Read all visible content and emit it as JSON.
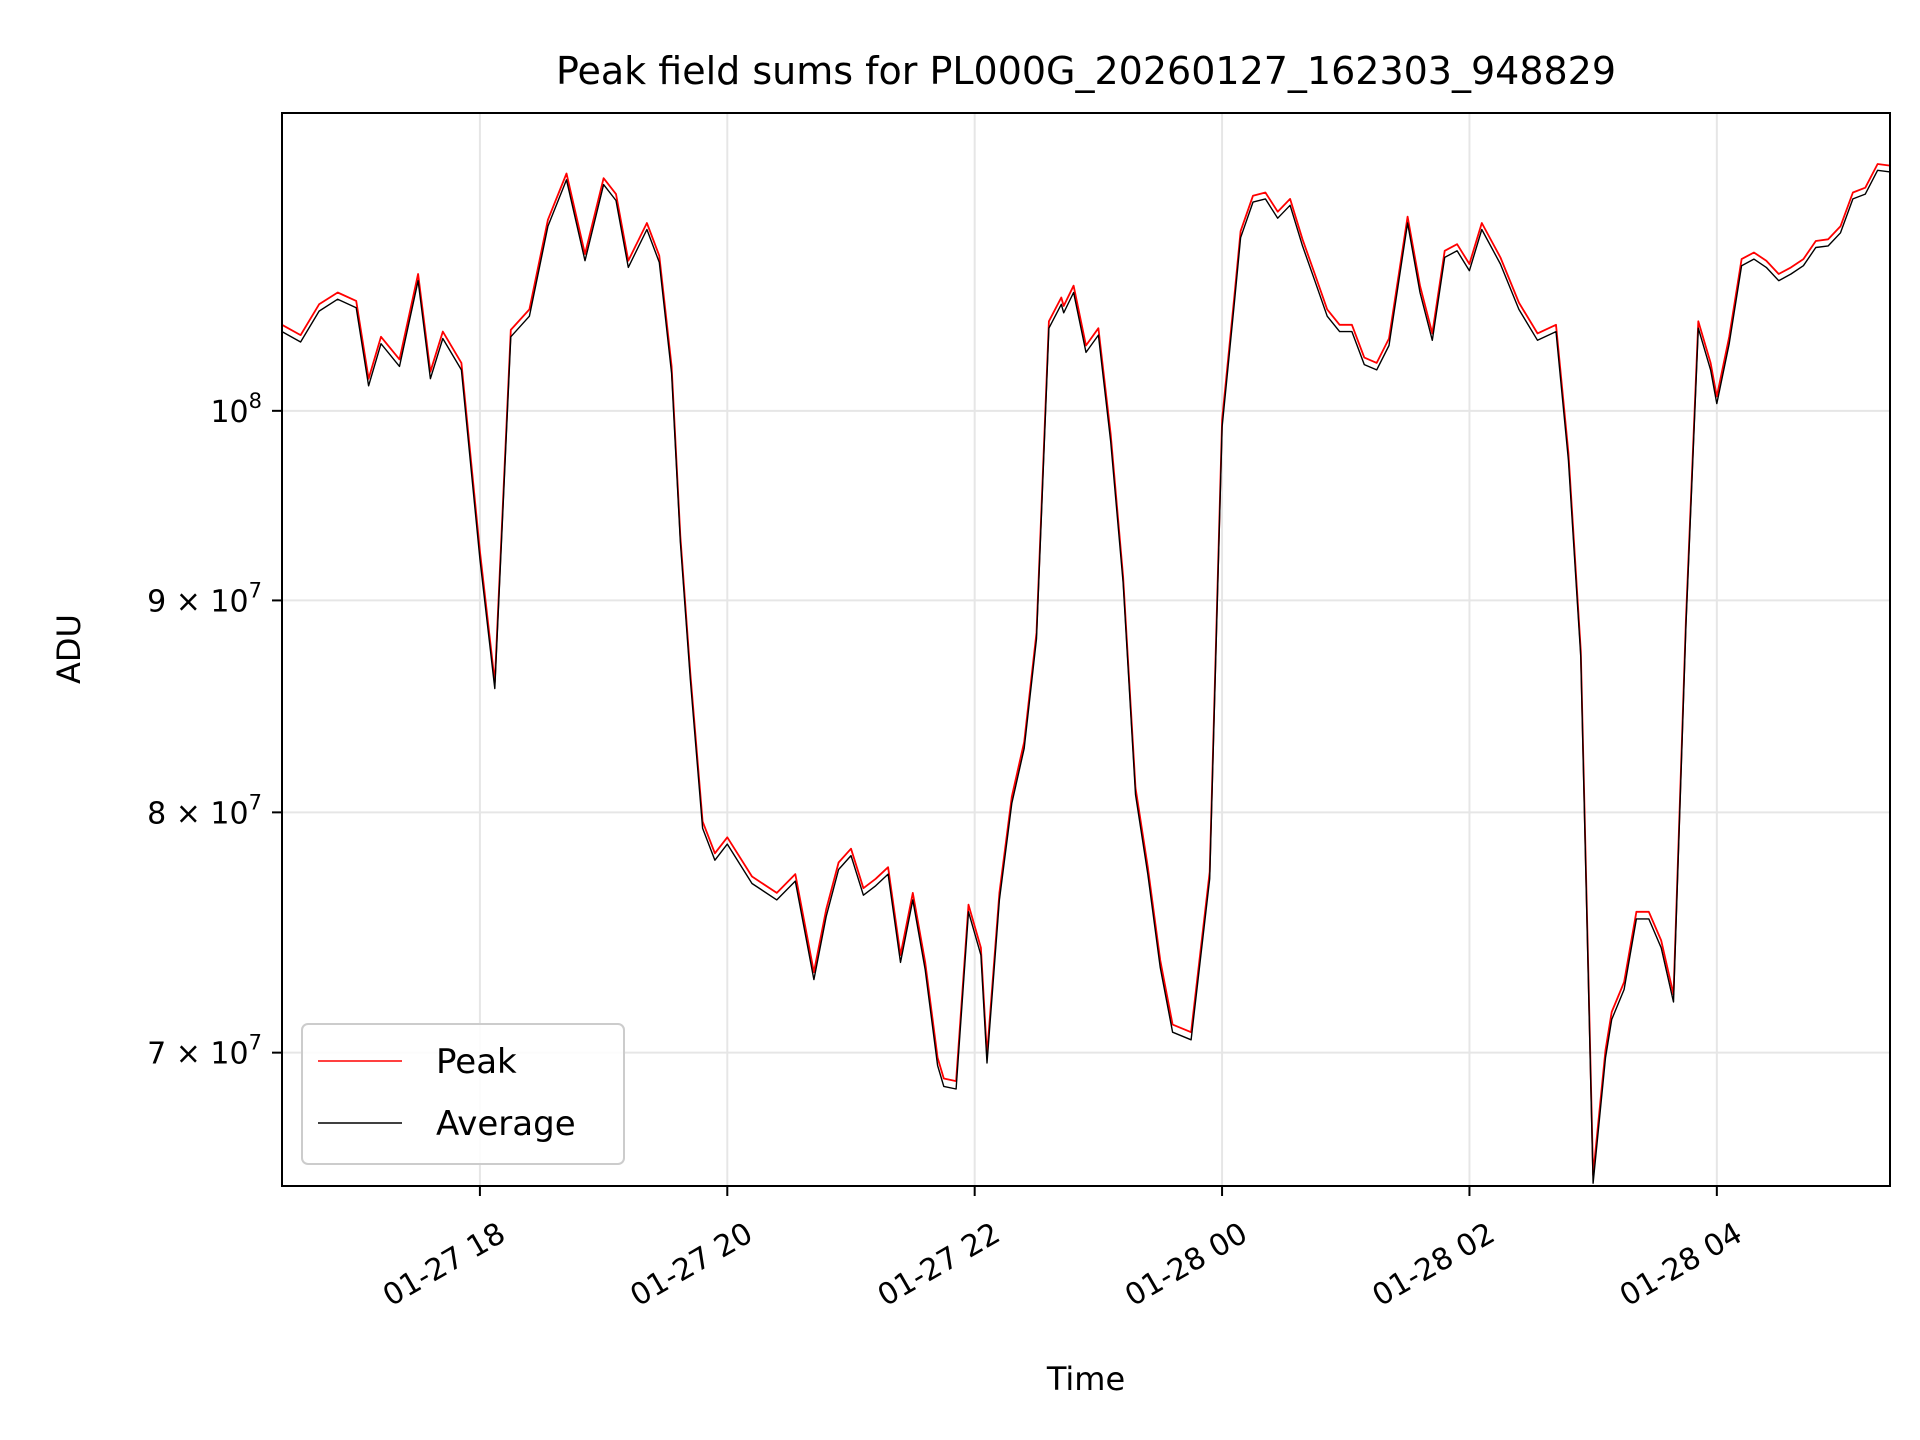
{
  "chart_data": {
    "type": "line",
    "title": "Peak field sums for PL000G_20260127_162303_948829",
    "xlabel": "Time",
    "ylabel": "ADU",
    "yscale": "log",
    "grid": true,
    "legend_position": "lower-left",
    "xlim_hours": [
      16.4,
      29.4
    ],
    "ylim": [
      65000000,
      118000000
    ],
    "x_ticks": [
      {
        "hours": 18,
        "label": "01-27 18"
      },
      {
        "hours": 20,
        "label": "01-27 20"
      },
      {
        "hours": 22,
        "label": "01-27 22"
      },
      {
        "hours": 24,
        "label": "01-28 00"
      },
      {
        "hours": 26,
        "label": "01-28 02"
      },
      {
        "hours": 28,
        "label": "01-28 04"
      }
    ],
    "y_ticks": [
      {
        "value": 70000000,
        "mantissa": "7",
        "exp": "7",
        "label": "7 × 10^7"
      },
      {
        "value": 80000000,
        "mantissa": "8",
        "exp": "7",
        "label": "8 × 10^7"
      },
      {
        "value": 90000000,
        "mantissa": "9",
        "exp": "7",
        "label": "9 × 10^7"
      },
      {
        "value": 100000000,
        "mantissa": "",
        "exp": "8",
        "label": "10^8"
      }
    ],
    "x_hours": [
      16.4,
      16.55,
      16.7,
      16.85,
      17.0,
      17.1,
      17.2,
      17.35,
      17.5,
      17.6,
      17.7,
      17.85,
      18.0,
      18.12,
      18.25,
      18.4,
      18.55,
      18.7,
      18.85,
      19.0,
      19.1,
      19.2,
      19.35,
      19.45,
      19.55,
      19.62,
      19.7,
      19.8,
      19.9,
      20.0,
      20.2,
      20.4,
      20.55,
      20.7,
      20.8,
      20.9,
      21.0,
      21.1,
      21.2,
      21.3,
      21.4,
      21.5,
      21.6,
      21.7,
      21.75,
      21.85,
      21.95,
      22.05,
      22.1,
      22.2,
      22.3,
      22.4,
      22.5,
      22.6,
      22.7,
      22.72,
      22.8,
      22.9,
      23.0,
      23.1,
      23.2,
      23.3,
      23.4,
      23.5,
      23.6,
      23.75,
      23.9,
      24.0,
      24.1,
      24.15,
      24.25,
      24.35,
      24.45,
      24.55,
      24.65,
      24.75,
      24.85,
      24.95,
      25.05,
      25.15,
      25.25,
      25.35,
      25.5,
      25.6,
      25.7,
      25.8,
      25.9,
      26.0,
      26.1,
      26.25,
      26.4,
      26.55,
      26.7,
      26.8,
      26.9,
      27.0,
      27.1,
      27.15,
      27.25,
      27.35,
      27.45,
      27.55,
      27.65,
      27.75,
      27.85,
      27.95,
      28.0,
      28.1,
      28.2,
      28.3,
      28.4,
      28.5,
      28.6,
      28.7,
      28.8,
      28.9,
      29.0,
      29.1,
      29.2,
      29.3,
      29.4
    ],
    "series": [
      {
        "name": "Peak",
        "color": "#ff0000",
        "values": [
          104900000,
          104300000,
          106100000,
          106800000,
          106300000,
          101800000,
          104200000,
          102900000,
          107900000,
          102200000,
          104500000,
          102700000,
          92500000,
          86000000,
          104600000,
          105800000,
          111200000,
          114100000,
          109100000,
          113800000,
          112800000,
          108700000,
          111000000,
          109000000,
          102500000,
          93300000,
          86500000,
          79600000,
          78200000,
          78900000,
          77200000,
          76500000,
          77300000,
          73200000,
          75800000,
          77800000,
          78400000,
          76700000,
          77100000,
          77600000,
          73900000,
          76500000,
          73600000,
          69800000,
          69000000,
          68900000,
          76000000,
          74200000,
          69900000,
          76500000,
          80700000,
          83200000,
          88400000,
          105100000,
          106500000,
          106000000,
          107200000,
          103700000,
          104700000,
          98700000,
          91200000,
          81100000,
          77600000,
          73700000,
          71100000,
          70800000,
          77400000,
          99500000,
          106600000,
          110500000,
          112700000,
          112900000,
          111700000,
          112500000,
          110000000,
          107900000,
          105800000,
          104900000,
          104900000,
          103000000,
          102700000,
          104100000,
          111400000,
          107200000,
          104400000,
          109300000,
          109700000,
          108500000,
          111000000,
          108900000,
          106200000,
          104400000,
          104900000,
          97700000,
          87500000,
          65400000,
          70100000,
          71600000,
          72800000,
          75700000,
          75700000,
          74500000,
          72300000,
          89000000,
          105100000,
          102700000,
          100800000,
          104200000,
          108800000,
          109200000,
          108700000,
          107900000,
          108300000,
          108800000,
          109900000,
          110000000,
          110800000,
          112900000,
          113200000,
          114700000,
          114600000
        ]
      },
      {
        "name": "Average",
        "color": "#000000",
        "values": [
          104500000,
          103900000,
          105700000,
          106400000,
          105900000,
          101400000,
          103800000,
          102500000,
          107500000,
          101800000,
          104100000,
          102300000,
          92100000,
          85700000,
          104200000,
          105400000,
          110800000,
          113700000,
          108700000,
          113400000,
          112400000,
          108300000,
          110600000,
          108600000,
          102100000,
          93000000,
          86200000,
          79300000,
          77900000,
          78600000,
          76900000,
          76200000,
          77000000,
          72900000,
          75500000,
          77500000,
          78100000,
          76400000,
          76800000,
          77300000,
          73600000,
          76200000,
          73300000,
          69500000,
          68700000,
          68600000,
          75700000,
          73900000,
          69600000,
          76200000,
          80400000,
          82900000,
          88100000,
          104700000,
          106100000,
          105600000,
          106800000,
          103300000,
          104300000,
          98300000,
          90900000,
          80800000,
          77300000,
          73400000,
          70800000,
          70500000,
          77100000,
          99100000,
          106200000,
          110100000,
          112300000,
          112500000,
          111300000,
          112100000,
          109600000,
          107500000,
          105400000,
          104500000,
          104500000,
          102600000,
          102300000,
          103700000,
          111000000,
          106800000,
          104000000,
          108900000,
          109300000,
          108100000,
          110600000,
          108500000,
          105800000,
          104000000,
          104500000,
          97300000,
          87200000,
          65100000,
          69800000,
          71300000,
          72500000,
          75400000,
          75400000,
          74200000,
          72000000,
          88700000,
          104700000,
          102300000,
          100400000,
          103800000,
          108400000,
          108800000,
          108300000,
          107500000,
          107900000,
          108400000,
          109500000,
          109600000,
          110400000,
          112500000,
          112800000,
          114300000,
          114200000
        ]
      }
    ]
  }
}
